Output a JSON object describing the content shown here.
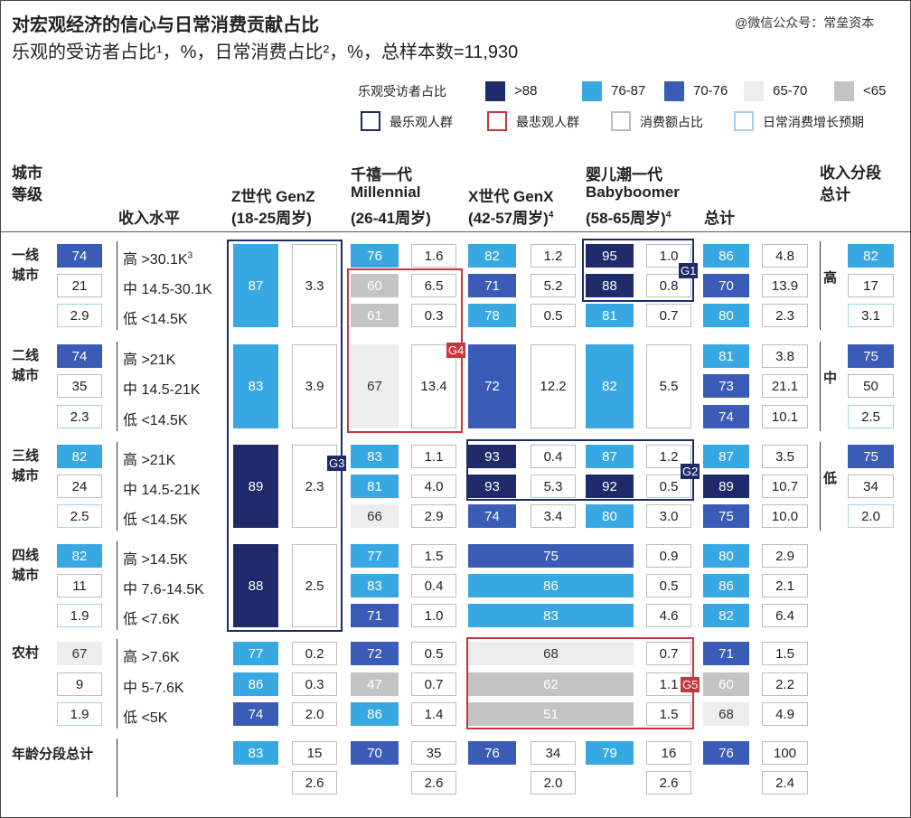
{
  "title": "对宏观经济的信心与日常消费贡献占比",
  "subtitle": "乐观的受访者占比¹，%，日常消费占比²，%，总样本数=11,930",
  "watermark": "@微信公众号：常垒资本",
  "legend": {
    "title": "乐观受访者占比",
    "levels": [
      {
        "label": ">88",
        "color": "#1e2a6a"
      },
      {
        "label": "76-87",
        "color": "#38a8e2"
      },
      {
        "label": "70-76",
        "color": "#3a5bb6"
      },
      {
        "label": "65-70",
        "color": "#ededed"
      },
      {
        "label": "<65",
        "color": "#c4c4c4"
      }
    ],
    "boxes": [
      {
        "label": "最乐观人群",
        "color": "#1e2a6a"
      },
      {
        "label": "最悲观人群",
        "color": "#c8363c"
      },
      {
        "label": "消费额占比",
        "color": "#bdbdbd"
      },
      {
        "label": "日常消费增长预期",
        "color": "#9ed5ea"
      }
    ]
  },
  "headers": [
    {
      "lines": [
        "城市",
        "等级"
      ]
    },
    {
      "lines": [
        "收入水平"
      ]
    },
    {
      "lines": [
        "Z世代 GenZ",
        "(18-25周岁)"
      ]
    },
    {
      "lines": [
        "千禧一代",
        "Millennial",
        "(26-41周岁)"
      ]
    },
    {
      "lines": [
        "X世代 GenX",
        "(42-57周岁)"
      ],
      "sup": "4"
    },
    {
      "lines": [
        "婴儿潮一代",
        "Babyboomer",
        "(58-65周岁)"
      ],
      "sup": "4"
    },
    {
      "lines": [
        "总计"
      ]
    },
    {
      "lines": [
        "收入分段",
        "总计"
      ]
    }
  ],
  "tiers": [
    {
      "name": "一线城市",
      "incomes": [
        {
          "label": "高 >30.1K",
          "sup": "3"
        },
        {
          "label": "中 14.5-30.1K"
        },
        {
          "label": "低 <14.5K"
        }
      ],
      "city": [
        {
          "v": "74",
          "fill": "#3a5bb6"
        },
        {
          "v": "21",
          "border": "#bdbdbd"
        },
        {
          "v": "2.9",
          "border": "#9ed5ea"
        }
      ],
      "genz": {
        "opt": [
          {
            "v": "87",
            "fill": "#38a8e2"
          }
        ],
        "share": [
          {
            "v": "3.3",
            "border": "#bdbdbd"
          }
        ]
      },
      "millennial": {
        "opt": [
          {
            "v": "76",
            "fill": "#38a8e2"
          },
          {
            "v": "60",
            "fill": "#c4c4c4"
          },
          {
            "v": "61",
            "fill": "#c4c4c4"
          }
        ],
        "share": [
          {
            "v": "1.6",
            "border": "#bdbdbd"
          },
          {
            "v": "6.5",
            "border": "#bdbdbd"
          },
          {
            "v": "0.3",
            "border": "#bdbdbd"
          }
        ]
      },
      "genx": {
        "opt": [
          {
            "v": "82",
            "fill": "#38a8e2"
          },
          {
            "v": "71",
            "fill": "#3a5bb6"
          },
          {
            "v": "78",
            "fill": "#38a8e2"
          }
        ],
        "share": [
          {
            "v": "1.2",
            "border": "#bdbdbd"
          },
          {
            "v": "5.2",
            "border": "#bdbdbd"
          },
          {
            "v": "0.5",
            "border": "#bdbdbd"
          }
        ]
      },
      "boomer": {
        "opt": [
          {
            "v": "95",
            "fill": "#1e2a6a"
          },
          {
            "v": "88",
            "fill": "#1e2a6a"
          },
          {
            "v": "81",
            "fill": "#38a8e2"
          }
        ],
        "share": [
          {
            "v": "1.0",
            "border": "#bdbdbd"
          },
          {
            "v": "0.8",
            "border": "#bdbdbd"
          },
          {
            "v": "0.7",
            "border": "#bdbdbd"
          }
        ]
      },
      "total": {
        "opt": [
          {
            "v": "86",
            "fill": "#38a8e2"
          },
          {
            "v": "70",
            "fill": "#3a5bb6"
          },
          {
            "v": "80",
            "fill": "#38a8e2"
          }
        ],
        "share": [
          {
            "v": "4.8",
            "border": "#bdbdbd"
          },
          {
            "v": "13.9",
            "border": "#bdbdbd"
          },
          {
            "v": "2.3",
            "border": "#bdbdbd"
          }
        ]
      },
      "segment": {
        "label": "高",
        "cells": [
          {
            "v": "82",
            "fill": "#38a8e2"
          },
          {
            "v": "17",
            "border": "#bdbdbd"
          },
          {
            "v": "3.1",
            "border": "#9ed5ea"
          }
        ]
      }
    },
    {
      "name": "二线城市",
      "incomes": [
        {
          "label": "高 >21K"
        },
        {
          "label": "中 14.5-21K"
        },
        {
          "label": "低 <14.5K"
        }
      ],
      "city": [
        {
          "v": "74",
          "fill": "#3a5bb6"
        },
        {
          "v": "35",
          "border": "#bdbdbd"
        },
        {
          "v": "2.3",
          "border": "#9ed5ea"
        }
      ],
      "genz": {
        "opt": [
          {
            "v": "83",
            "fill": "#38a8e2"
          }
        ],
        "share": [
          {
            "v": "3.9",
            "border": "#bdbdbd"
          }
        ]
      },
      "millennial": {
        "opt": [
          {
            "v": "67",
            "fill": "#ededed"
          }
        ],
        "share": [
          {
            "v": "13.4",
            "border": "#bdbdbd"
          }
        ]
      },
      "genx": {
        "opt": [
          {
            "v": "72",
            "fill": "#3a5bb6"
          }
        ],
        "share": [
          {
            "v": "12.2",
            "border": "#bdbdbd"
          }
        ]
      },
      "boomer": {
        "opt": [
          {
            "v": "82",
            "fill": "#38a8e2"
          }
        ],
        "share": [
          {
            "v": "5.5",
            "border": "#bdbdbd"
          }
        ]
      },
      "total": {
        "opt": [
          {
            "v": "81",
            "fill": "#38a8e2"
          },
          {
            "v": "73",
            "fill": "#3a5bb6"
          },
          {
            "v": "74",
            "fill": "#3a5bb6"
          }
        ],
        "share": [
          {
            "v": "3.8",
            "border": "#bdbdbd"
          },
          {
            "v": "21.1",
            "border": "#bdbdbd"
          },
          {
            "v": "10.1",
            "border": "#bdbdbd"
          }
        ]
      },
      "segment": {
        "label": "中",
        "cells": [
          {
            "v": "75",
            "fill": "#3a5bb6"
          },
          {
            "v": "50",
            "border": "#bdbdbd"
          },
          {
            "v": "2.5",
            "border": "#9ed5ea"
          }
        ]
      }
    },
    {
      "name": "三线城市",
      "incomes": [
        {
          "label": "高 >21K"
        },
        {
          "label": "中 14.5-21K"
        },
        {
          "label": "低 <14.5K"
        }
      ],
      "city": [
        {
          "v": "82",
          "fill": "#38a8e2"
        },
        {
          "v": "24",
          "border": "#bdbdbd"
        },
        {
          "v": "2.5",
          "border": "#9ed5ea"
        }
      ],
      "genz": {
        "opt": [
          {
            "v": "89",
            "fill": "#1e2a6a"
          }
        ],
        "share": [
          {
            "v": "2.3",
            "border": "#bdbdbd"
          }
        ]
      },
      "millennial": {
        "opt": [
          {
            "v": "83",
            "fill": "#38a8e2"
          },
          {
            "v": "81",
            "fill": "#38a8e2"
          },
          {
            "v": "66",
            "fill": "#ededed"
          }
        ],
        "share": [
          {
            "v": "1.1",
            "border": "#bdbdbd"
          },
          {
            "v": "4.0",
            "border": "#bdbdbd"
          },
          {
            "v": "2.9",
            "border": "#bdbdbd"
          }
        ]
      },
      "genx": {
        "opt": [
          {
            "v": "93",
            "fill": "#1e2a6a"
          },
          {
            "v": "93",
            "fill": "#1e2a6a"
          },
          {
            "v": "74",
            "fill": "#3a5bb6"
          }
        ],
        "share": [
          {
            "v": "0.4",
            "border": "#bdbdbd"
          },
          {
            "v": "5.3",
            "border": "#bdbdbd"
          },
          {
            "v": "3.4",
            "border": "#bdbdbd"
          }
        ]
      },
      "boomer": {
        "opt": [
          {
            "v": "87",
            "fill": "#38a8e2"
          },
          {
            "v": "92",
            "fill": "#1e2a6a"
          },
          {
            "v": "80",
            "fill": "#38a8e2"
          }
        ],
        "share": [
          {
            "v": "1.2",
            "border": "#bdbdbd"
          },
          {
            "v": "0.5",
            "border": "#bdbdbd"
          },
          {
            "v": "3.0",
            "border": "#bdbdbd"
          }
        ]
      },
      "total": {
        "opt": [
          {
            "v": "87",
            "fill": "#38a8e2"
          },
          {
            "v": "89",
            "fill": "#1e2a6a"
          },
          {
            "v": "75",
            "fill": "#3a5bb6"
          }
        ],
        "share": [
          {
            "v": "3.5",
            "border": "#bdbdbd"
          },
          {
            "v": "10.7",
            "border": "#bdbdbd"
          },
          {
            "v": "10.0",
            "border": "#bdbdbd"
          }
        ]
      },
      "segment": {
        "label": "低",
        "cells": [
          {
            "v": "75",
            "fill": "#3a5bb6"
          },
          {
            "v": "34",
            "border": "#bdbdbd"
          },
          {
            "v": "2.0",
            "border": "#9ed5ea"
          }
        ]
      }
    },
    {
      "name": "四线城市",
      "incomes": [
        {
          "label": "高 >14.5K"
        },
        {
          "label": "中 7.6-14.5K"
        },
        {
          "label": "低 <7.6K"
        }
      ],
      "city": [
        {
          "v": "82",
          "fill": "#38a8e2"
        },
        {
          "v": "11",
          "border": "#bdbdbd"
        },
        {
          "v": "1.9",
          "border": "#9ed5ea"
        }
      ],
      "genz": {
        "opt": [
          {
            "v": "88",
            "fill": "#1e2a6a"
          }
        ],
        "share": [
          {
            "v": "2.5",
            "border": "#bdbdbd"
          }
        ]
      },
      "millennial": {
        "opt": [
          {
            "v": "77",
            "fill": "#38a8e2"
          },
          {
            "v": "83",
            "fill": "#38a8e2"
          },
          {
            "v": "71",
            "fill": "#3a5bb6"
          }
        ],
        "share": [
          {
            "v": "1.5",
            "border": "#bdbdbd"
          },
          {
            "v": "0.4",
            "border": "#bdbdbd"
          },
          {
            "v": "1.0",
            "border": "#bdbdbd"
          }
        ]
      },
      "genx_boomer": {
        "opt": [
          {
            "v": "75",
            "fill": "#3a5bb6"
          },
          {
            "v": "86",
            "fill": "#38a8e2"
          },
          {
            "v": "83",
            "fill": "#38a8e2"
          }
        ],
        "share": [
          {
            "v": "0.9",
            "border": "#bdbdbd"
          },
          {
            "v": "0.5",
            "border": "#bdbdbd"
          },
          {
            "v": "4.6",
            "border": "#bdbdbd"
          }
        ]
      },
      "total": {
        "opt": [
          {
            "v": "80",
            "fill": "#38a8e2"
          },
          {
            "v": "86",
            "fill": "#38a8e2"
          },
          {
            "v": "82",
            "fill": "#38a8e2"
          }
        ],
        "share": [
          {
            "v": "2.9",
            "border": "#bdbdbd"
          },
          {
            "v": "2.1",
            "border": "#bdbdbd"
          },
          {
            "v": "6.4",
            "border": "#bdbdbd"
          }
        ]
      }
    },
    {
      "name": "农村",
      "incomes": [
        {
          "label": "高 >7.6K"
        },
        {
          "label": "中 5-7.6K"
        },
        {
          "label": "低 <5K"
        }
      ],
      "city": [
        {
          "v": "67",
          "fill": "#ededed"
        },
        {
          "v": "9",
          "border": "#bdbdbd"
        },
        {
          "v": "1.9",
          "border": "#9ed5ea"
        }
      ],
      "genz": {
        "opt": [
          {
            "v": "77",
            "fill": "#38a8e2"
          },
          {
            "v": "86",
            "fill": "#38a8e2"
          },
          {
            "v": "74",
            "fill": "#3a5bb6"
          }
        ],
        "share": [
          {
            "v": "0.2",
            "border": "#bdbdbd"
          },
          {
            "v": "0.3",
            "border": "#bdbdbd"
          },
          {
            "v": "2.0",
            "border": "#bdbdbd"
          }
        ]
      },
      "millennial": {
        "opt": [
          {
            "v": "72",
            "fill": "#3a5bb6"
          },
          {
            "v": "47",
            "fill": "#c4c4c4"
          },
          {
            "v": "86",
            "fill": "#38a8e2"
          }
        ],
        "share": [
          {
            "v": "0.5",
            "border": "#bdbdbd"
          },
          {
            "v": "0.7",
            "border": "#bdbdbd"
          },
          {
            "v": "1.4",
            "border": "#bdbdbd"
          }
        ]
      },
      "genx_boomer": {
        "opt": [
          {
            "v": "68",
            "fill": "#ededed"
          },
          {
            "v": "62",
            "fill": "#c4c4c4"
          },
          {
            "v": "51",
            "fill": "#c4c4c4"
          }
        ],
        "share": [
          {
            "v": "0.7",
            "border": "#bdbdbd"
          },
          {
            "v": "1.1",
            "border": "#bdbdbd"
          },
          {
            "v": "1.5",
            "border": "#bdbdbd"
          }
        ]
      },
      "total": {
        "opt": [
          {
            "v": "71",
            "fill": "#3a5bb6"
          },
          {
            "v": "60",
            "fill": "#c4c4c4"
          },
          {
            "v": "68",
            "fill": "#ededed"
          }
        ],
        "share": [
          {
            "v": "1.5",
            "border": "#bdbdbd"
          },
          {
            "v": "2.2",
            "border": "#bdbdbd"
          },
          {
            "v": "4.9",
            "border": "#bdbdbd"
          }
        ]
      }
    }
  ],
  "age_total": {
    "label": "年龄分段总计",
    "genz": {
      "opt": {
        "v": "83",
        "fill": "#38a8e2"
      },
      "share": {
        "v": "15",
        "border": "#bdbdbd"
      },
      "growth": {
        "v": "2.6",
        "border": "#bdbdbd"
      }
    },
    "millennial": {
      "opt": {
        "v": "70",
        "fill": "#3a5bb6"
      },
      "share": {
        "v": "35",
        "border": "#bdbdbd"
      },
      "growth": {
        "v": "2.6",
        "border": "#bdbdbd"
      }
    },
    "genx": {
      "opt": {
        "v": "76",
        "fill": "#3a5bb6"
      },
      "share": {
        "v": "34",
        "border": "#bdbdbd"
      },
      "growth": {
        "v": "2.0",
        "border": "#bdbdbd"
      }
    },
    "boomer": {
      "opt": {
        "v": "79",
        "fill": "#38a8e2"
      },
      "share": {
        "v": "16",
        "border": "#bdbdbd"
      },
      "growth": {
        "v": "2.6",
        "border": "#bdbdbd"
      }
    },
    "total": {
      "opt": {
        "v": "76",
        "fill": "#3a5bb6"
      },
      "share": {
        "v": "100",
        "border": "#bdbdbd"
      },
      "growth": {
        "v": "2.4",
        "border": "#bdbdbd"
      }
    }
  },
  "groups": [
    {
      "label": "G1",
      "color": "#1e2a6a"
    },
    {
      "label": "G2",
      "color": "#1e2a6a"
    },
    {
      "label": "G3",
      "color": "#1e2a6a"
    },
    {
      "label": "G4",
      "color": "#c8363c"
    },
    {
      "label": "G5",
      "color": "#c8363c"
    }
  ]
}
